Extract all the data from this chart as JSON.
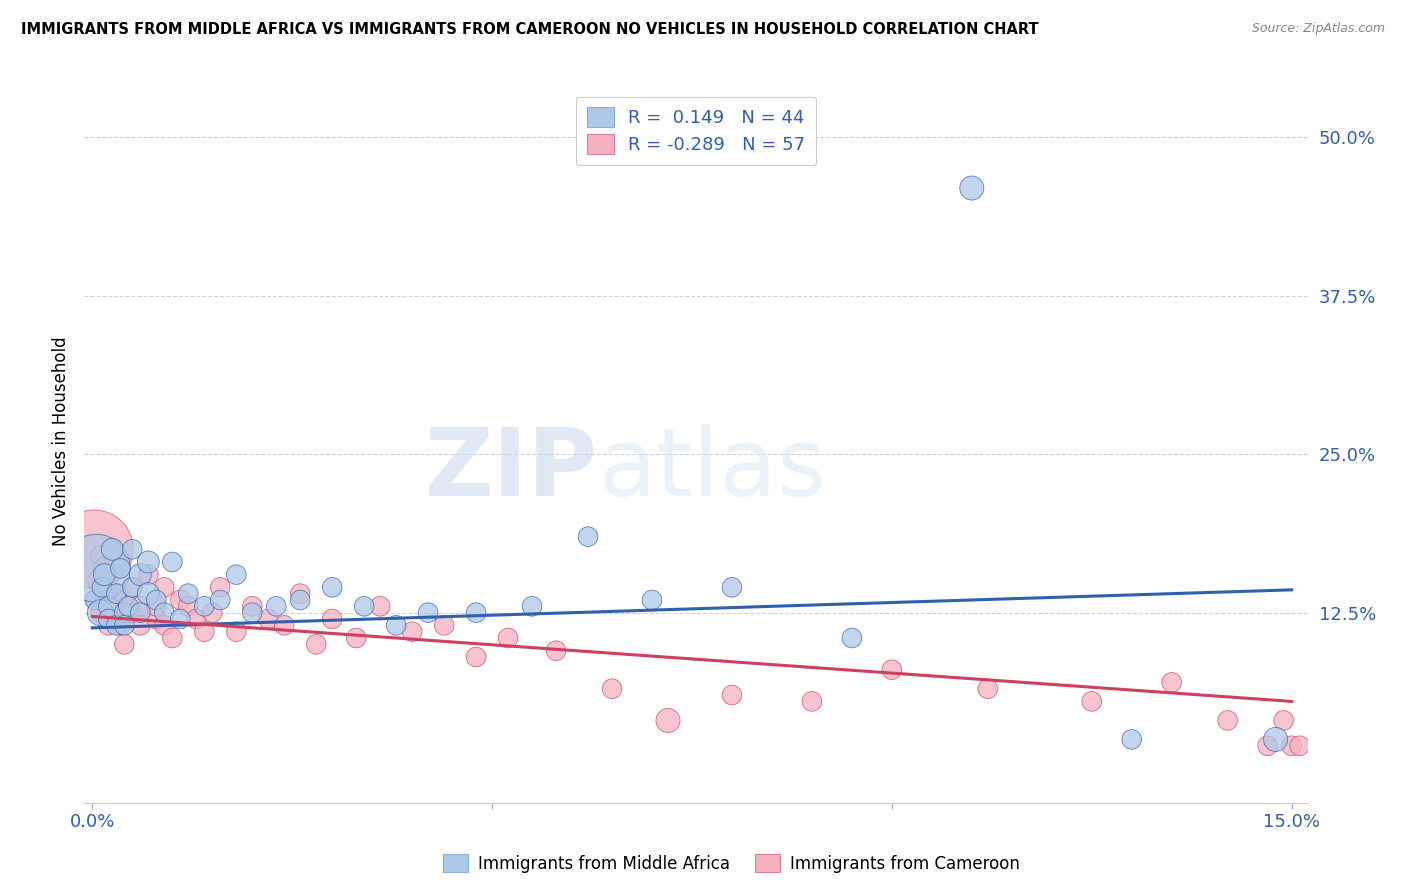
{
  "title": "IMMIGRANTS FROM MIDDLE AFRICA VS IMMIGRANTS FROM CAMEROON NO VEHICLES IN HOUSEHOLD CORRELATION CHART",
  "source": "Source: ZipAtlas.com",
  "ylabel": "No Vehicles in Household",
  "watermark_zip": "ZIP",
  "watermark_atlas": "atlas",
  "legend_blue_r": "0.149",
  "legend_blue_n": "44",
  "legend_pink_r": "-0.289",
  "legend_pink_n": "57",
  "blue_color": "#adc8e8",
  "pink_color": "#f5b0c0",
  "blue_line_color": "#3060b0",
  "pink_line_color": "#d04060",
  "ytick_labels": [
    "12.5%",
    "25.0%",
    "37.5%",
    "50.0%"
  ],
  "ytick_values": [
    0.125,
    0.25,
    0.375,
    0.5
  ],
  "xmin": -0.001,
  "xmax": 0.152,
  "ymin": -0.025,
  "ymax": 0.545,
  "blue_trend_start": 0.113,
  "blue_trend_end": 0.143,
  "pink_trend_start": 0.122,
  "pink_trend_end": 0.055,
  "blue_scatter_x": [
    0.0003,
    0.0005,
    0.001,
    0.0012,
    0.0015,
    0.002,
    0.002,
    0.0025,
    0.003,
    0.003,
    0.0035,
    0.004,
    0.004,
    0.0045,
    0.005,
    0.005,
    0.006,
    0.006,
    0.007,
    0.007,
    0.008,
    0.009,
    0.01,
    0.011,
    0.012,
    0.014,
    0.016,
    0.018,
    0.02,
    0.023,
    0.026,
    0.03,
    0.034,
    0.038,
    0.042,
    0.048,
    0.055,
    0.062,
    0.07,
    0.08,
    0.095,
    0.11,
    0.13,
    0.148
  ],
  "blue_scatter_y": [
    0.135,
    0.16,
    0.125,
    0.145,
    0.155,
    0.13,
    0.12,
    0.175,
    0.115,
    0.14,
    0.16,
    0.125,
    0.115,
    0.13,
    0.145,
    0.175,
    0.155,
    0.125,
    0.14,
    0.165,
    0.135,
    0.125,
    0.165,
    0.12,
    0.14,
    0.13,
    0.135,
    0.155,
    0.125,
    0.13,
    0.135,
    0.145,
    0.13,
    0.115,
    0.125,
    0.125,
    0.13,
    0.185,
    0.135,
    0.145,
    0.105,
    0.46,
    0.025,
    0.025
  ],
  "blue_scatter_sizes": [
    200,
    2400,
    350,
    200,
    250,
    200,
    200,
    250,
    200,
    200,
    200,
    200,
    200,
    200,
    200,
    200,
    250,
    200,
    250,
    250,
    200,
    200,
    200,
    200,
    200,
    200,
    200,
    200,
    200,
    200,
    200,
    200,
    200,
    200,
    200,
    200,
    200,
    200,
    200,
    200,
    200,
    300,
    200,
    300
  ],
  "pink_scatter_x": [
    0.0002,
    0.0004,
    0.0008,
    0.001,
    0.001,
    0.0015,
    0.002,
    0.002,
    0.0025,
    0.003,
    0.003,
    0.0035,
    0.004,
    0.004,
    0.005,
    0.005,
    0.006,
    0.006,
    0.007,
    0.008,
    0.008,
    0.009,
    0.009,
    0.01,
    0.011,
    0.012,
    0.013,
    0.014,
    0.015,
    0.016,
    0.018,
    0.02,
    0.022,
    0.024,
    0.026,
    0.028,
    0.03,
    0.033,
    0.036,
    0.04,
    0.044,
    0.048,
    0.052,
    0.058,
    0.065,
    0.072,
    0.08,
    0.09,
    0.1,
    0.112,
    0.125,
    0.135,
    0.142,
    0.147,
    0.149,
    0.15,
    0.151
  ],
  "pink_scatter_y": [
    0.175,
    0.135,
    0.15,
    0.125,
    0.17,
    0.16,
    0.145,
    0.115,
    0.13,
    0.12,
    0.14,
    0.115,
    0.135,
    0.1,
    0.125,
    0.145,
    0.115,
    0.13,
    0.155,
    0.12,
    0.13,
    0.145,
    0.115,
    0.105,
    0.135,
    0.13,
    0.12,
    0.11,
    0.125,
    0.145,
    0.11,
    0.13,
    0.12,
    0.115,
    0.14,
    0.1,
    0.12,
    0.105,
    0.13,
    0.11,
    0.115,
    0.09,
    0.105,
    0.095,
    0.065,
    0.04,
    0.06,
    0.055,
    0.08,
    0.065,
    0.055,
    0.07,
    0.04,
    0.02,
    0.04,
    0.02,
    0.02
  ],
  "pink_scatter_sizes": [
    3200,
    200,
    250,
    200,
    200,
    250,
    200,
    200,
    200,
    200,
    200,
    200,
    200,
    200,
    200,
    200,
    200,
    200,
    200,
    200,
    200,
    200,
    200,
    200,
    200,
    200,
    200,
    200,
    200,
    200,
    200,
    200,
    200,
    200,
    200,
    200,
    200,
    200,
    200,
    200,
    200,
    200,
    200,
    200,
    200,
    300,
    200,
    200,
    200,
    200,
    200,
    200,
    200,
    200,
    200,
    200,
    200
  ]
}
